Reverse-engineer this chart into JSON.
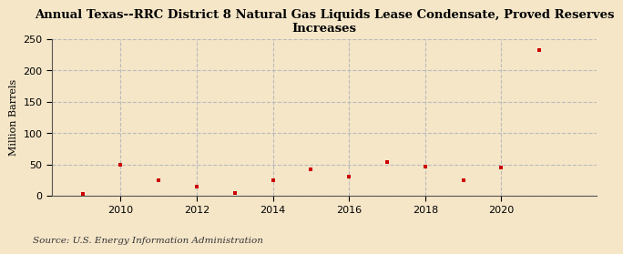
{
  "title": "Annual Texas--RRC District 8 Natural Gas Liquids Lease Condensate, Proved Reserves\nIncreases",
  "ylabel": "Million Barrels",
  "source": "Source: U.S. Energy Information Administration",
  "background_color": "#f5e6c8",
  "plot_background_color": "#f5e6c8",
  "years": [
    2009,
    2010,
    2011,
    2012,
    2013,
    2014,
    2015,
    2016,
    2017,
    2018,
    2019,
    2020,
    2021
  ],
  "values": [
    3,
    49,
    25,
    14,
    5,
    25,
    42,
    30,
    54,
    46,
    25,
    45,
    232
  ],
  "marker_color": "#cc0000",
  "marker": "s",
  "marker_size": 3.5,
  "xlim": [
    2008.2,
    2022.5
  ],
  "ylim": [
    0,
    250
  ],
  "yticks": [
    0,
    50,
    100,
    150,
    200,
    250
  ],
  "xticks": [
    2010,
    2012,
    2014,
    2016,
    2018,
    2020
  ],
  "grid_color": "#bbbbbb",
  "grid_linestyle": "--",
  "title_fontsize": 9.5,
  "axis_fontsize": 8,
  "source_fontsize": 7.5
}
